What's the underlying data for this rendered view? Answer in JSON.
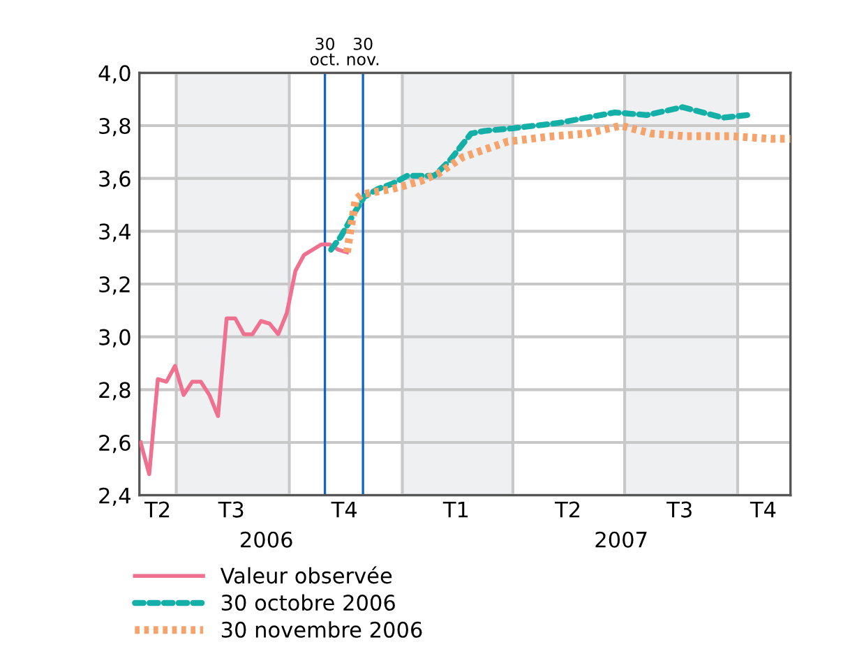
{
  "chart_data": {
    "type": "line",
    "ylim": [
      2.4,
      4.0
    ],
    "yticks": [
      {
        "value": 2.4,
        "label": "2,4"
      },
      {
        "value": 2.6,
        "label": "2,6"
      },
      {
        "value": 2.8,
        "label": "2,8"
      },
      {
        "value": 3.0,
        "label": "3,0"
      },
      {
        "value": 3.2,
        "label": "3,2"
      },
      {
        "value": 3.4,
        "label": "3,4"
      },
      {
        "value": 3.6,
        "label": "3,6"
      },
      {
        "value": 3.8,
        "label": "3,8"
      },
      {
        "value": 4.0,
        "label": "4,0"
      }
    ],
    "xlim": [
      "2006-06-01",
      "2007-11-13"
    ],
    "xticks": [
      {
        "value": "2006-06-16",
        "label": "T2"
      },
      {
        "value": "2006-08-15",
        "label": "T3"
      },
      {
        "value": "2006-11-15",
        "label": "T4"
      },
      {
        "value": "2007-02-14",
        "label": "T1"
      },
      {
        "value": "2007-05-16",
        "label": "T2"
      },
      {
        "value": "2007-08-15",
        "label": "T3"
      },
      {
        "value": "2007-10-22",
        "label": "T4"
      }
    ],
    "grid": "y",
    "legend": "bottom",
    "series": [
      {
        "name": "Valeur observée",
        "color": "#f0708f",
        "line_style": "solid",
        "x": [
          "2006-06-02",
          "2006-06-09",
          "2006-06-16",
          "2006-06-23",
          "2006-06-30",
          "2006-07-07",
          "2006-07-14",
          "2006-07-21",
          "2006-07-28",
          "2006-08-04",
          "2006-08-11",
          "2006-08-18",
          "2006-08-25",
          "2006-09-01",
          "2006-09-08",
          "2006-09-15",
          "2006-09-22",
          "2006-09-29",
          "2006-10-06",
          "2006-10-13",
          "2006-10-20",
          "2006-10-27",
          "2006-11-03",
          "2006-11-10",
          "2006-11-17"
        ],
        "values": [
          2.6,
          2.48,
          2.84,
          2.83,
          2.89,
          2.78,
          2.83,
          2.83,
          2.78,
          2.7,
          3.07,
          3.07,
          3.01,
          3.01,
          3.06,
          3.05,
          3.01,
          3.09,
          3.25,
          3.31,
          3.33,
          3.35,
          3.35,
          3.33,
          3.32
        ]
      },
      {
        "name": "30 octobre 2006",
        "color": "#14b0a8",
        "line_style": "dashed",
        "x": [
          "2006-11-04",
          "2006-11-12",
          "2006-11-23",
          "2006-12-01",
          "2006-12-12",
          "2006-12-24",
          "2007-01-05",
          "2007-01-27",
          "2007-02-09",
          "2007-02-26",
          "2007-03-09",
          "2007-04-01",
          "2007-05-08",
          "2007-05-31",
          "2007-06-23",
          "2007-07-19",
          "2007-08-17",
          "2007-09-19",
          "2007-10-09"
        ],
        "values": [
          3.33,
          3.38,
          3.47,
          3.53,
          3.56,
          3.58,
          3.61,
          3.61,
          3.67,
          3.77,
          3.78,
          3.79,
          3.81,
          3.83,
          3.85,
          3.84,
          3.87,
          3.83,
          3.84
        ]
      },
      {
        "name": "30 novembre 2006",
        "color": "#f5a36b",
        "line_style": "dotted",
        "x": [
          "2006-11-17",
          "2006-11-20",
          "2006-11-24",
          "2006-11-29",
          "2006-12-24",
          "2007-01-16",
          "2007-01-31",
          "2007-02-19",
          "2007-03-28",
          "2007-05-04",
          "2007-05-31",
          "2007-06-28",
          "2007-07-23",
          "2007-08-19",
          "2007-09-26",
          "2007-10-28",
          "2007-11-13"
        ],
        "values": [
          3.32,
          3.41,
          3.52,
          3.54,
          3.56,
          3.59,
          3.62,
          3.68,
          3.74,
          3.76,
          3.77,
          3.8,
          3.77,
          3.76,
          3.76,
          3.75,
          3.75
        ]
      }
    ],
    "ref_lines": [
      {
        "axis": "x",
        "value": "2006-10-30",
        "label": "30\noct.",
        "color": "#1565c0"
      },
      {
        "axis": "x",
        "value": "2006-11-30",
        "label": "30\nnov.",
        "color": "#1565c0"
      }
    ],
    "bands": [
      {
        "axis": "x",
        "from": "2006-07-01",
        "to": "2006-10-01",
        "color": "#eff0f2"
      },
      {
        "axis": "x",
        "from": "2007-01-01",
        "to": "2007-04-01",
        "color": "#eff0f2"
      },
      {
        "axis": "x",
        "from": "2007-07-01",
        "to": "2007-10-01",
        "color": "#eff0f2"
      }
    ],
    "annotations": [
      "2006",
      "2007"
    ]
  }
}
